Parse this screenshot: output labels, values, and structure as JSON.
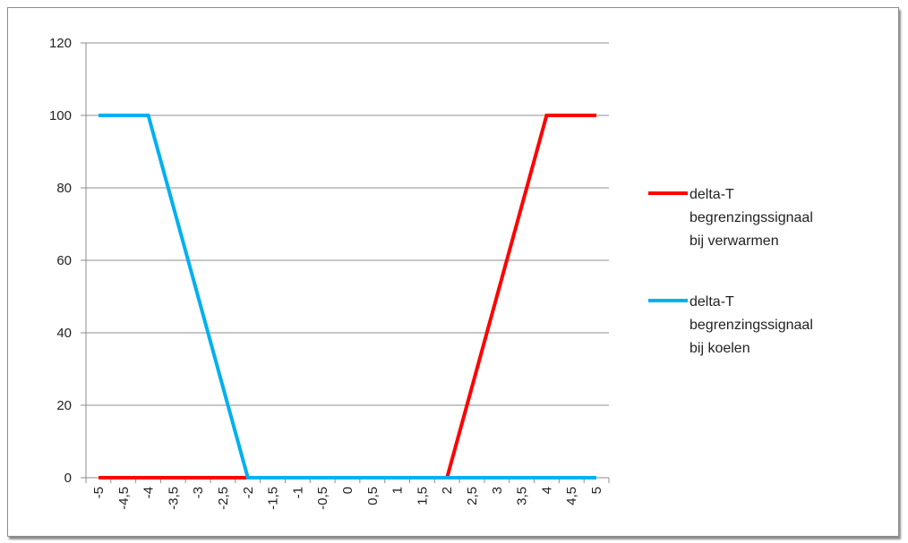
{
  "chart_data": {
    "type": "line",
    "title": "",
    "xlabel": "",
    "ylabel": "",
    "x": [
      "-5",
      "-4,5",
      "-4",
      "-3,5",
      "-3",
      "-2,5",
      "-2",
      "-1,5",
      "-1",
      "-0,5",
      "0",
      "0,5",
      "1",
      "1,5",
      "2",
      "2,5",
      "3",
      "3,5",
      "4",
      "4,5",
      "5"
    ],
    "ylim": [
      0,
      120
    ],
    "yticks": [
      "0",
      "20",
      "40",
      "60",
      "80",
      "100",
      "120"
    ],
    "grid": true,
    "legend_position": "right",
    "series": [
      {
        "name": "delta-T begrenzingssignaal bij verwarmen",
        "name_lines": [
          "delta-T",
          "begrenzingssignaal",
          "bij verwarmen"
        ],
        "color": "#ff0000",
        "values": [
          0,
          0,
          0,
          0,
          0,
          0,
          0,
          0,
          0,
          0,
          0,
          0,
          0,
          0,
          0,
          25,
          50,
          75,
          100,
          100,
          100
        ]
      },
      {
        "name": "delta-T begrenzingssignaal bij koelen",
        "name_lines": [
          "delta-T",
          "begrenzingssignaal",
          "bij koelen"
        ],
        "color": "#00b0f0",
        "values": [
          100,
          100,
          100,
          75,
          50,
          25,
          0,
          0,
          0,
          0,
          0,
          0,
          0,
          0,
          0,
          0,
          0,
          0,
          0,
          0,
          0
        ]
      }
    ]
  }
}
